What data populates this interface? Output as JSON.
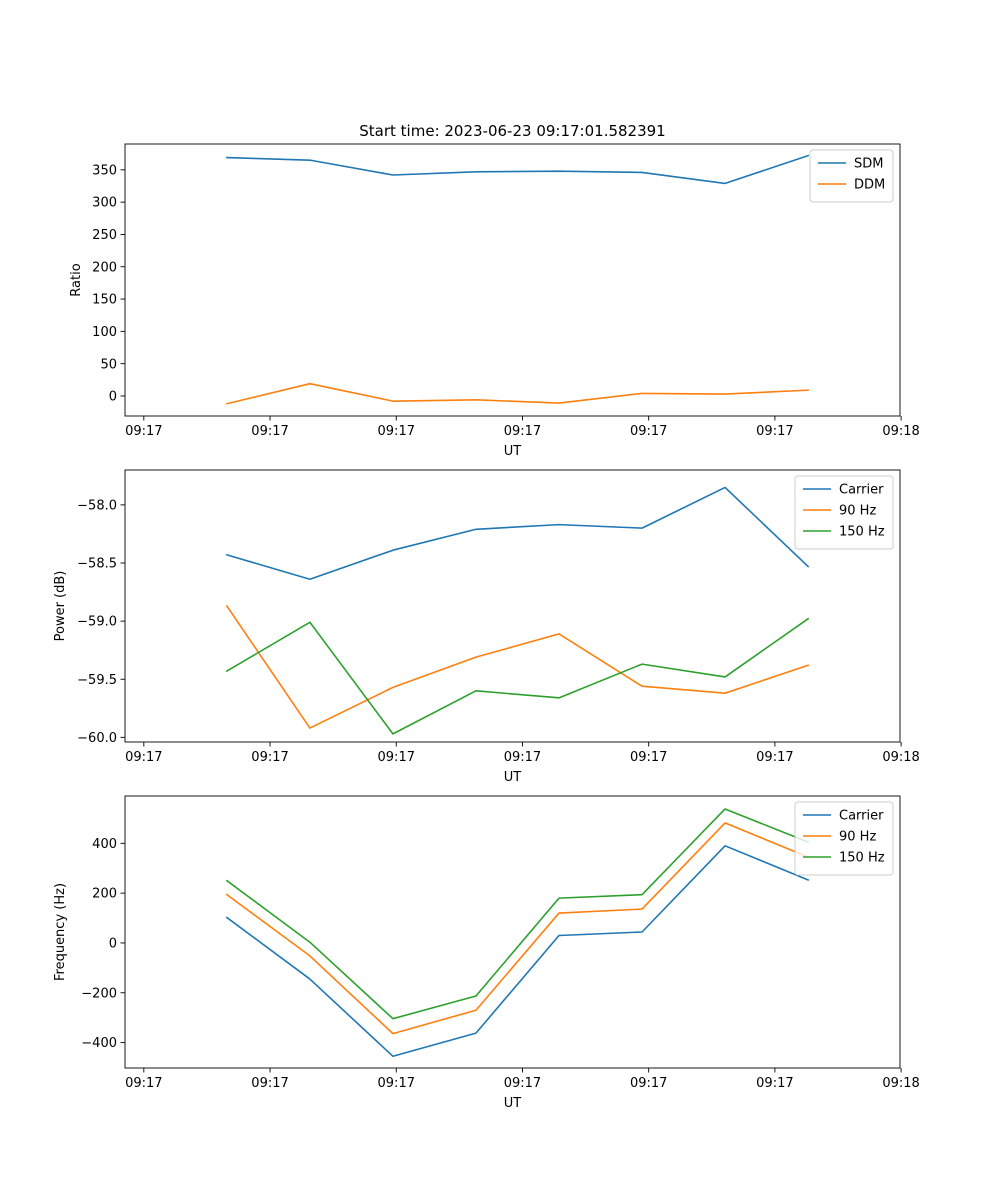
{
  "figure": {
    "title": "Start time: 2023-06-23 09:17:01.582391"
  },
  "chart_data": [
    {
      "type": "line",
      "xlabel": "UT",
      "ylabel": "Ratio",
      "x": [
        7.5,
        15.0,
        22.5,
        30.0,
        37.5,
        45.0,
        52.5,
        60.0
      ],
      "xlim": [
        -1.7,
        68.3
      ],
      "x_ticks": [
        0,
        11.4,
        22.8,
        34.2,
        45.6,
        57.0,
        68.4
      ],
      "x_tick_labels": [
        "09:17",
        "09:17",
        "09:17",
        "09:17",
        "09:17",
        "09:17",
        "09:18"
      ],
      "ylim": [
        -31,
        390
      ],
      "y_ticks": [
        0,
        50,
        100,
        150,
        200,
        250,
        300,
        350
      ],
      "y_tick_labels": [
        "0",
        "50",
        "100",
        "150",
        "200",
        "250",
        "300",
        "350"
      ],
      "legend_position": "top-right",
      "grid": false,
      "series": [
        {
          "name": "SDM",
          "color": "#1f77b4",
          "values": [
            369,
            365,
            342,
            347,
            348,
            346,
            329,
            372
          ]
        },
        {
          "name": "DDM",
          "color": "#ff7f0e",
          "values": [
            -12,
            19,
            -8,
            -6,
            -11,
            4,
            3,
            9
          ]
        }
      ]
    },
    {
      "type": "line",
      "xlabel": "UT",
      "ylabel": "Power (dB)",
      "x": [
        7.5,
        15.0,
        22.5,
        30.0,
        37.5,
        45.0,
        52.5,
        60.0
      ],
      "xlim": [
        -1.7,
        68.3
      ],
      "x_ticks": [
        0,
        11.4,
        22.8,
        34.2,
        45.6,
        57.0,
        68.4
      ],
      "x_tick_labels": [
        "09:17",
        "09:17",
        "09:17",
        "09:17",
        "09:17",
        "09:17",
        "09:18"
      ],
      "ylim": [
        -60.04,
        -57.7
      ],
      "y_ticks": [
        -60.0,
        -59.5,
        -59.0,
        -58.5,
        -58.0
      ],
      "y_tick_labels": [
        "−60.0",
        "−59.5",
        "−59.0",
        "−58.5",
        "−58.0"
      ],
      "legend_position": "top-right",
      "grid": false,
      "series": [
        {
          "name": "Carrier",
          "color": "#1f77b4",
          "values": [
            -58.43,
            -58.64,
            -58.39,
            -58.21,
            -58.17,
            -58.2,
            -57.85,
            -58.53
          ]
        },
        {
          "name": "90 Hz",
          "color": "#ff7f0e",
          "values": [
            -58.87,
            -59.92,
            -59.57,
            -59.31,
            -59.11,
            -59.56,
            -59.62,
            -59.38
          ]
        },
        {
          "name": "150 Hz",
          "color": "#2ca02c",
          "values": [
            -59.43,
            -59.01,
            -59.97,
            -59.6,
            -59.66,
            -59.37,
            -59.48,
            -58.98
          ]
        }
      ]
    },
    {
      "type": "line",
      "xlabel": "UT",
      "ylabel": "Frequency (Hz)",
      "x": [
        7.5,
        15.0,
        22.5,
        30.0,
        37.5,
        45.0,
        52.5,
        60.0
      ],
      "xlim": [
        -1.7,
        68.3
      ],
      "x_ticks": [
        0,
        11.4,
        22.8,
        34.2,
        45.6,
        57.0,
        68.4
      ],
      "x_tick_labels": [
        "09:17",
        "09:17",
        "09:17",
        "09:17",
        "09:17",
        "09:17",
        "09:18"
      ],
      "ylim": [
        -502,
        590
      ],
      "y_ticks": [
        -400,
        -200,
        0,
        200,
        400
      ],
      "y_tick_labels": [
        "−400",
        "−200",
        "0",
        "200",
        "400"
      ],
      "legend_position": "top-right",
      "grid": false,
      "series": [
        {
          "name": "Carrier",
          "color": "#1f77b4",
          "values": [
            102,
            -145,
            -455,
            -362,
            30,
            44,
            390,
            253
          ]
        },
        {
          "name": "90 Hz",
          "color": "#ff7f0e",
          "values": [
            194,
            -52,
            -364,
            -270,
            120,
            136,
            482,
            345
          ]
        },
        {
          "name": "150 Hz",
          "color": "#2ca02c",
          "values": [
            250,
            3,
            -304,
            -213,
            180,
            194,
            538,
            405
          ]
        }
      ]
    }
  ]
}
